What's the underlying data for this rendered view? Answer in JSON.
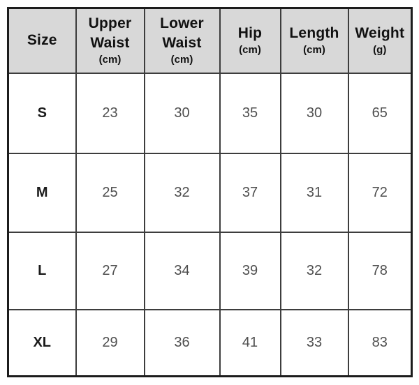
{
  "chart_data": {
    "type": "table",
    "title": "",
    "columns": [
      {
        "label": "Size",
        "unit": ""
      },
      {
        "label": "Upper Waist",
        "unit": "(cm)"
      },
      {
        "label": "Lower Waist",
        "unit": "(cm)"
      },
      {
        "label": "Hip",
        "unit": "(cm)"
      },
      {
        "label": "Length",
        "unit": "(cm)"
      },
      {
        "label": "Weight",
        "unit": "(g)"
      }
    ],
    "rows": [
      {
        "size": "S",
        "values": [
          "23",
          "30",
          "35",
          "30",
          "65"
        ]
      },
      {
        "size": "M",
        "values": [
          "25",
          "32",
          "37",
          "31",
          "72"
        ]
      },
      {
        "size": "L",
        "values": [
          "27",
          "34",
          "39",
          "32",
          "78"
        ]
      },
      {
        "size": "XL",
        "values": [
          "29",
          "36",
          "41",
          "33",
          "83"
        ]
      }
    ]
  },
  "colors": {
    "header_background": "#d8d8d8",
    "grid_line": "#3d3d3d",
    "outer_border": "#1c1c1c",
    "header_text": "#111111",
    "size_text": "#1a1a1a",
    "value_text": "#4f4f4f",
    "page_background": "#ffffff"
  }
}
